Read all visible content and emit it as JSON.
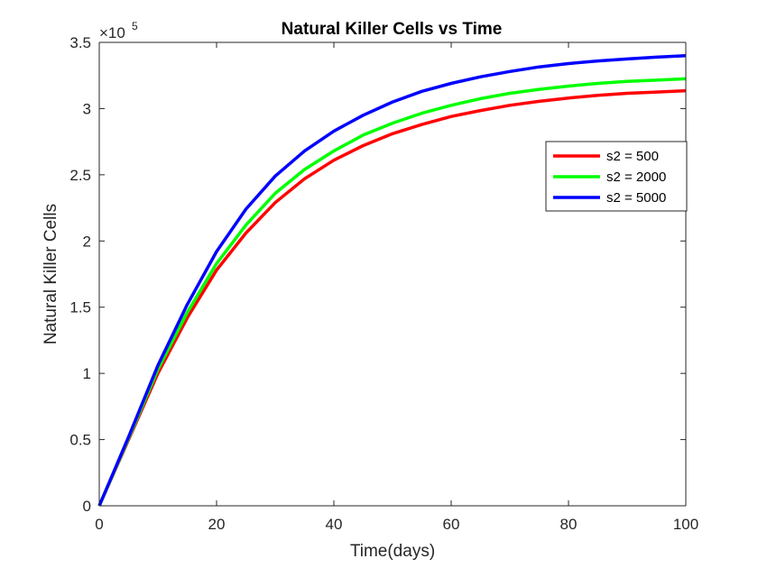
{
  "chart_data": {
    "type": "line",
    "title": "Natural Killer Cells vs Time",
    "xlabel": "Time(days)",
    "ylabel": "Natural Killer Cells",
    "xlim": [
      0,
      100
    ],
    "ylim": [
      0,
      350000
    ],
    "y_exponent_base": "×10",
    "y_exponent_power": "5",
    "x_ticks": [
      0,
      20,
      40,
      60,
      80,
      100
    ],
    "x_tick_labels": [
      "0",
      "20",
      "40",
      "60",
      "80",
      "100"
    ],
    "y_ticks": [
      0,
      50000,
      100000,
      150000,
      200000,
      250000,
      300000,
      350000
    ],
    "y_tick_labels": [
      "0",
      "0.5",
      "1",
      "1.5",
      "2",
      "2.5",
      "3",
      "3.5"
    ],
    "grid": false,
    "legend_position": "top-right",
    "x": [
      0,
      5,
      10,
      15,
      20,
      25,
      30,
      35,
      40,
      45,
      50,
      55,
      60,
      65,
      70,
      75,
      80,
      85,
      90,
      95,
      100
    ],
    "series": [
      {
        "name": "s2 = 500",
        "color": "#ff0000",
        "values": [
          0,
          50000,
          100000,
          142000,
          178000,
          206000,
          229000,
          247000,
          261000,
          272000,
          281000,
          288000,
          294000,
          298500,
          302500,
          305500,
          308000,
          310000,
          311500,
          312500,
          313500
        ]
      },
      {
        "name": "s2 = 2000",
        "color": "#00ff00",
        "values": [
          0,
          51000,
          103000,
          146000,
          183000,
          212000,
          236000,
          254000,
          268000,
          280000,
          289000,
          296500,
          302500,
          307500,
          311500,
          314500,
          317000,
          319000,
          320500,
          321500,
          322500
        ]
      },
      {
        "name": "s2 = 5000",
        "color": "#0000ff",
        "values": [
          0,
          52000,
          106000,
          152000,
          192000,
          224000,
          249000,
          268000,
          283000,
          295000,
          305000,
          313000,
          319000,
          324000,
          328000,
          331500,
          334000,
          336000,
          337500,
          338800,
          340000
        ]
      }
    ]
  }
}
